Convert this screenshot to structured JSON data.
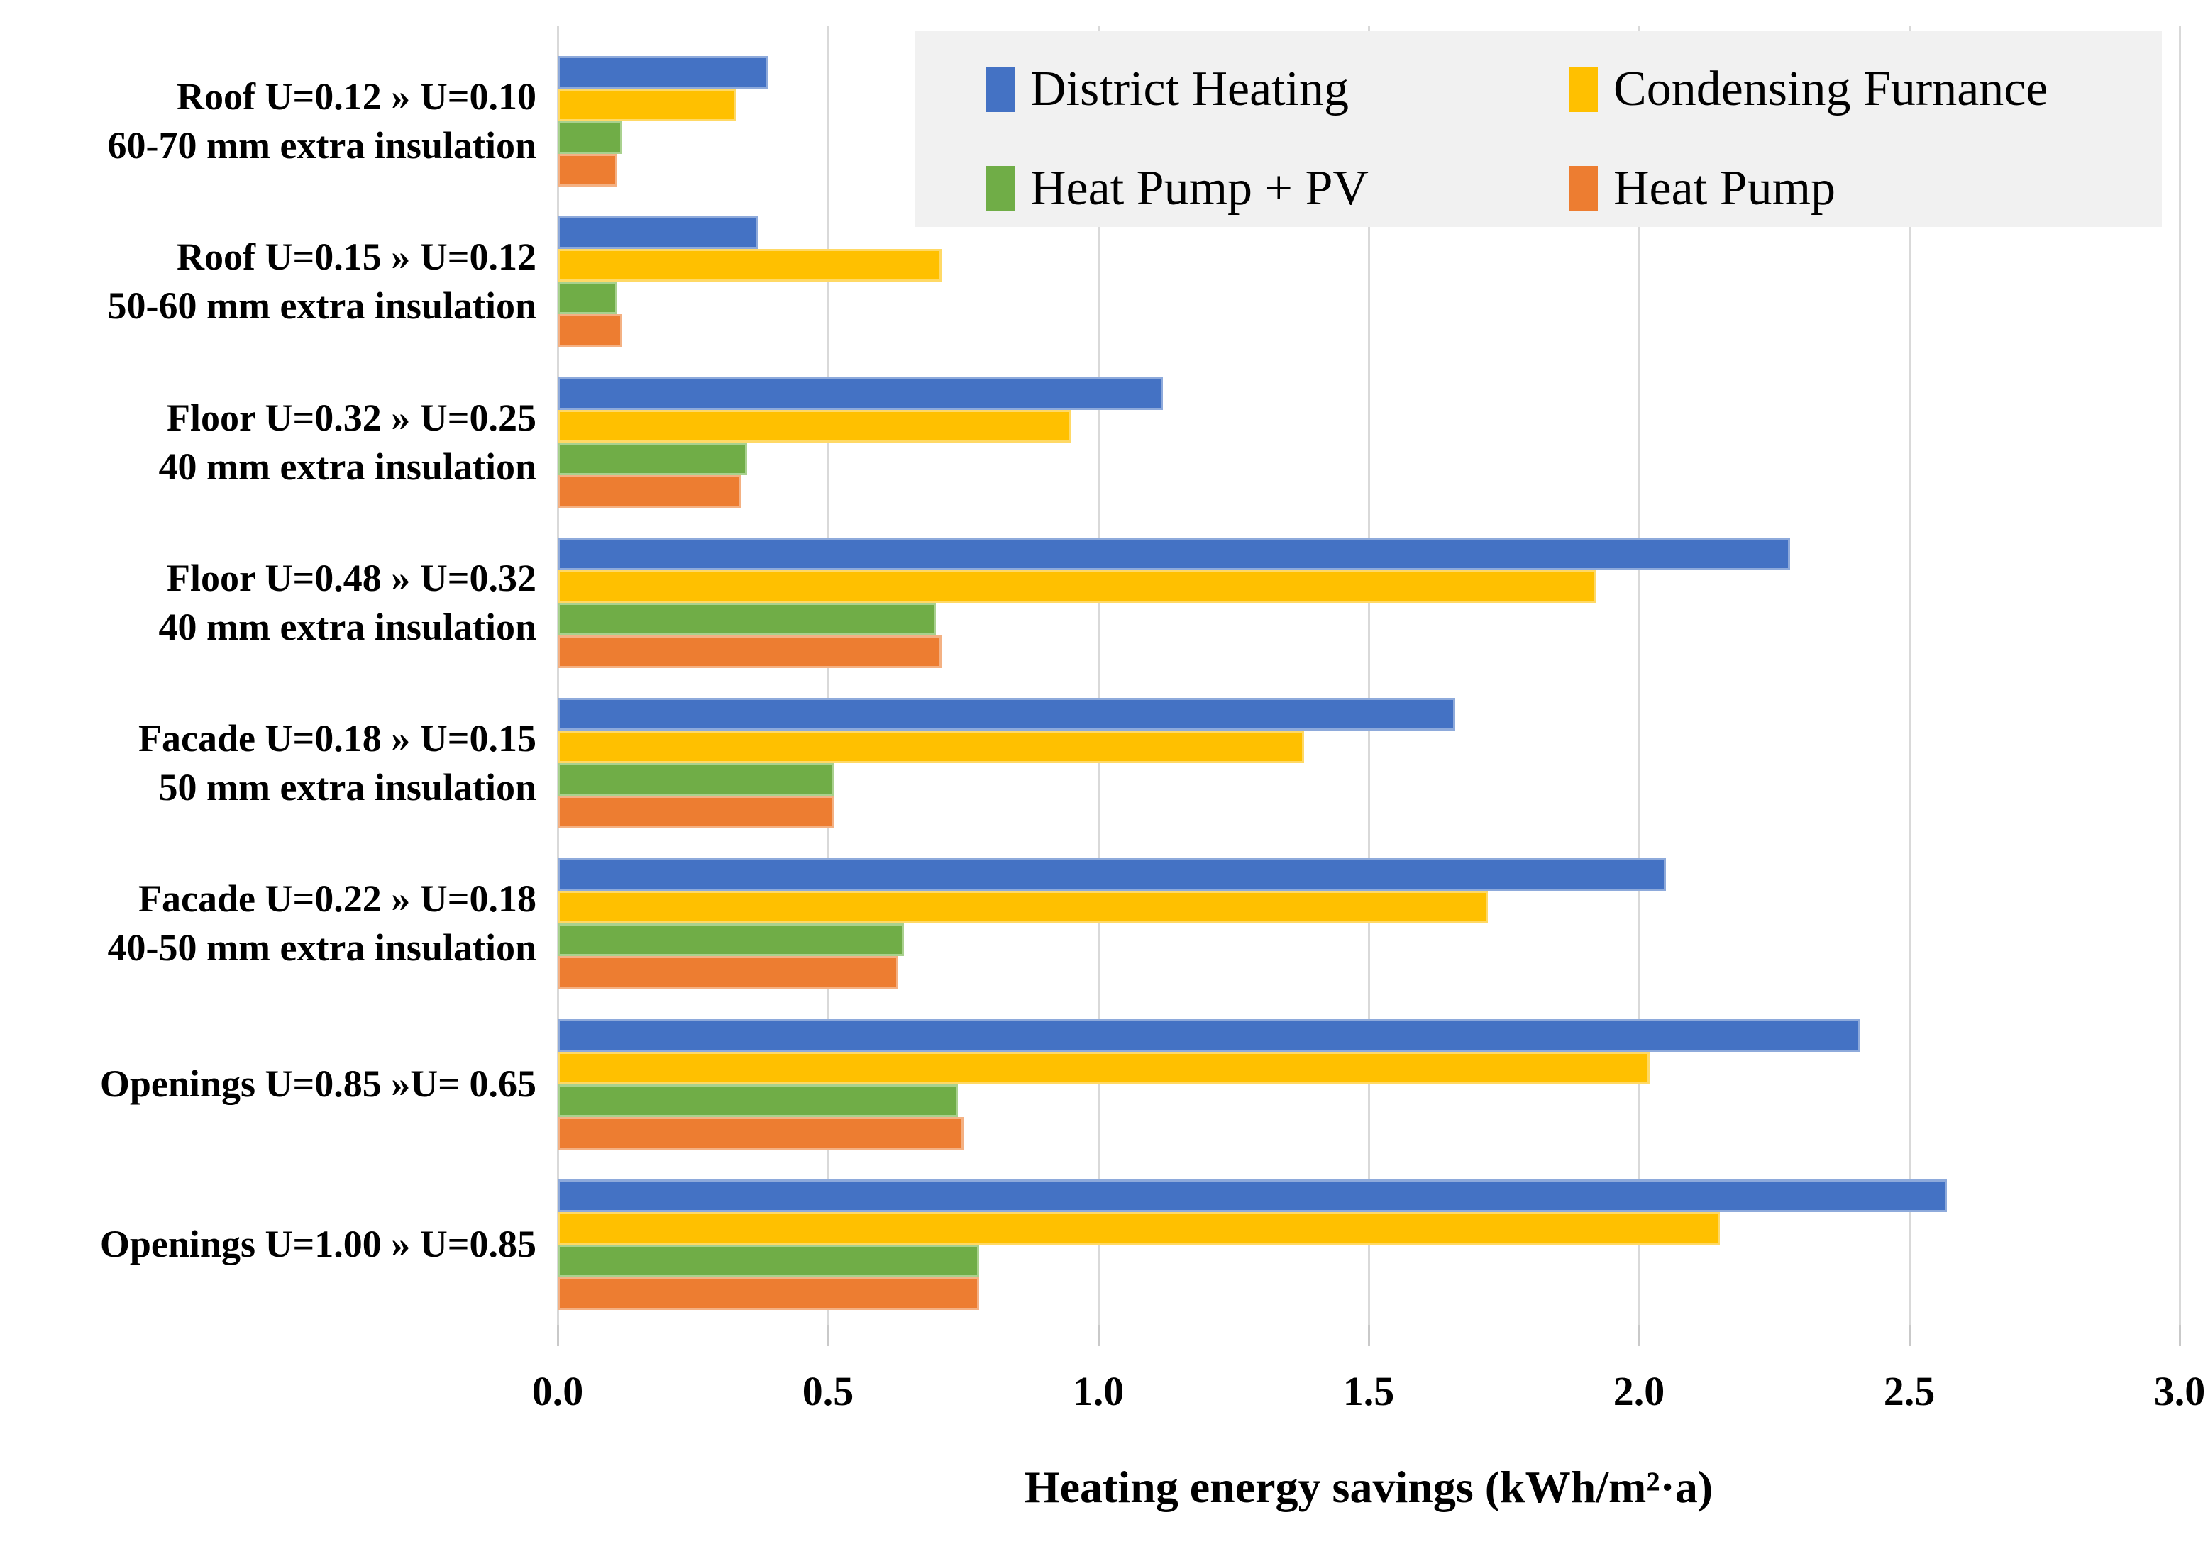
{
  "chart_data": {
    "type": "bar",
    "orientation": "horizontal",
    "xlabel": "Heating energy savings (kWh/m²·a)",
    "xlim": [
      0.0,
      3.0
    ],
    "xticks": [
      0.0,
      0.5,
      1.0,
      1.5,
      2.0,
      2.5,
      3.0
    ],
    "xtick_labels": [
      "0.0",
      "0.5",
      "1.0",
      "1.5",
      "2.0",
      "2.5",
      "3.0"
    ],
    "grid": {
      "vertical": true,
      "color": "#d9d9d9"
    },
    "categories": [
      {
        "label_lines": [
          "Roof U=0.12 » U=0.10",
          "60-70 mm extra insulation"
        ]
      },
      {
        "label_lines": [
          "Roof U=0.15 » U=0.12",
          "50-60 mm extra insulation"
        ]
      },
      {
        "label_lines": [
          "Floor U=0.32 » U=0.25",
          "40 mm extra insulation"
        ]
      },
      {
        "label_lines": [
          "Floor U=0.48 » U=0.32",
          "40 mm extra insulation"
        ]
      },
      {
        "label_lines": [
          "Facade U=0.18 » U=0.15",
          "50 mm extra insulation"
        ]
      },
      {
        "label_lines": [
          "Facade U=0.22 » U=0.18",
          "40-50 mm extra insulation"
        ]
      },
      {
        "label_lines": [
          "Openings U=0.85 »U= 0.65"
        ]
      },
      {
        "label_lines": [
          "Openings U=1.00 » U=0.85"
        ]
      }
    ],
    "series": [
      {
        "name": "District Heating",
        "color": "#4472c4",
        "border_color": "#8eaadb",
        "values": [
          0.39,
          0.37,
          1.12,
          2.28,
          1.66,
          2.05,
          2.41,
          2.57
        ]
      },
      {
        "name": "Condensing Furnance",
        "color": "#ffc000",
        "border_color": "#ffd966",
        "values": [
          0.33,
          0.71,
          0.95,
          1.92,
          1.38,
          1.72,
          2.02,
          2.15
        ]
      },
      {
        "name": "Heat Pump + PV",
        "color": "#70ad47",
        "border_color": "#a9d18e",
        "values": [
          0.12,
          0.11,
          0.35,
          0.7,
          0.51,
          0.64,
          0.74,
          0.78
        ]
      },
      {
        "name": "Heat Pump",
        "color": "#ed7d31",
        "border_color": "#f4b183",
        "values": [
          0.11,
          0.12,
          0.34,
          0.71,
          0.51,
          0.63,
          0.75,
          0.78
        ]
      }
    ],
    "legend": {
      "position": "top-right",
      "columns": 2,
      "background": "#f1f1f1",
      "entries": [
        "District Heating",
        "Condensing Furnance",
        "Heat Pump + PV",
        "Heat Pump"
      ]
    }
  }
}
